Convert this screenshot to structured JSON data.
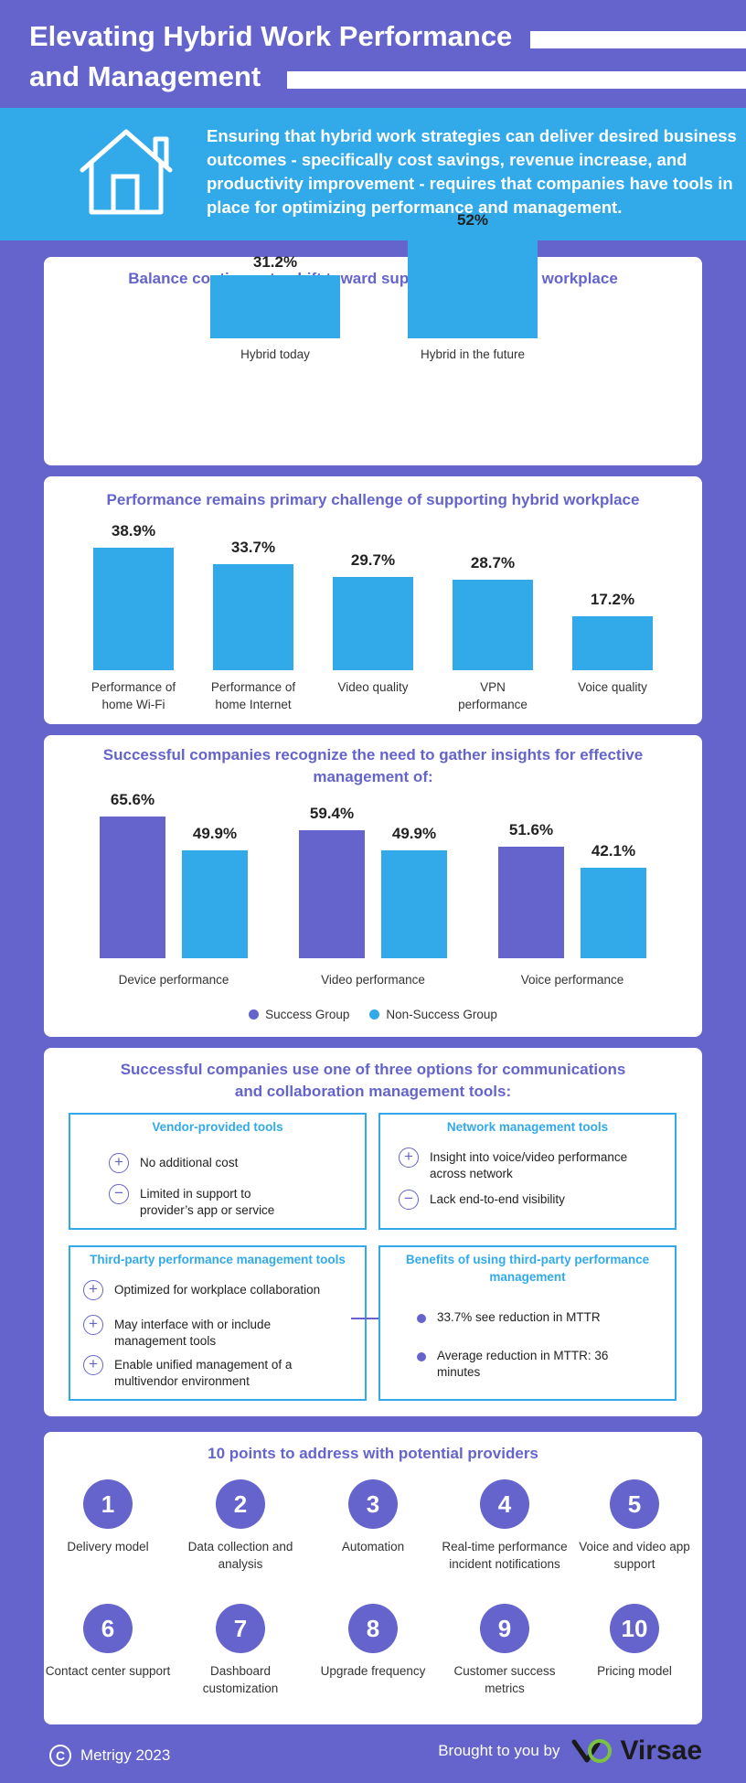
{
  "header": {
    "title_line1": "Elevating Hybrid Work Performance",
    "title_line2": "and Management"
  },
  "intro": {
    "text": "Ensuring that hybrid work strategies can deliver desired business outcomes - specifically cost savings, revenue increase, and productivity improvement - requires that companies have tools in place for optimizing performance and management.",
    "icon": "house-icon"
  },
  "colors": {
    "background": "#6464cc",
    "accent_blue": "#32aaea",
    "purple": "#6464cc",
    "white": "#ffffff"
  },
  "chart_data": [
    {
      "type": "bar",
      "title": "Balance continues to shift toward support of the hybrid workplace",
      "categories": [
        "Hybrid today",
        "Hybrid in the future"
      ],
      "values": [
        31.2,
        52
      ],
      "value_labels": [
        "31.2%",
        "52%"
      ],
      "color": "#32aaea"
    },
    {
      "type": "bar",
      "title": "Performance remains primary challenge of supporting hybrid workplace",
      "categories": [
        "Performance of home Wi-Fi",
        "Performance of home Internet",
        "Video quality",
        "VPN performance",
        "Voice quality"
      ],
      "category_lines": [
        [
          "Performance of",
          "home Wi-Fi"
        ],
        [
          "Performance of",
          "home Internet"
        ],
        [
          "Video quality"
        ],
        [
          "VPN",
          "performance"
        ],
        [
          "Voice quality"
        ]
      ],
      "values": [
        38.9,
        33.7,
        29.7,
        28.7,
        17.2
      ],
      "value_labels": [
        "38.9%",
        "33.7%",
        "29.7%",
        "28.7%",
        "17.2%"
      ],
      "color": "#32aaea"
    },
    {
      "type": "bar",
      "title": "Successful companies recognize the need to gather insights for effective management of:",
      "categories": [
        "Device performance",
        "Video performance",
        "Voice performance"
      ],
      "series": [
        {
          "name": "Success Group",
          "values": [
            65.6,
            59.4,
            51.6
          ],
          "value_labels": [
            "65.6%",
            "59.4%",
            "51.6%"
          ],
          "color": "#6464cc"
        },
        {
          "name": "Non-Success Group",
          "values": [
            49.9,
            49.9,
            42.1
          ],
          "value_labels": [
            "49.9%",
            "49.9%",
            "42.1%"
          ],
          "color": "#32aaea"
        }
      ],
      "legend": "bottom-center"
    }
  ],
  "options": {
    "title": "Successful companies use one of three options for communications and collaboration management tools:",
    "vendor": {
      "title": "Vendor-provided tools",
      "items": [
        {
          "symbol": "+",
          "text": "No additional cost"
        },
        {
          "symbol": "−",
          "text": "Limited in support to provider’s app or service"
        }
      ]
    },
    "network": {
      "title": "Network management tools",
      "items": [
        {
          "symbol": "+",
          "text": "Insight into voice/video performance across network"
        },
        {
          "symbol": "−",
          "text": "Lack end-to-end visibility"
        }
      ]
    },
    "thirdparty": {
      "title": "Third-party performance management tools",
      "items": [
        {
          "symbol": "+",
          "text": "Optimized for workplace collaboration"
        },
        {
          "symbol": "+",
          "text": "May interface with or include management tools"
        },
        {
          "symbol": "+",
          "text": "Enable unified management of a multivendor environment"
        }
      ]
    },
    "benefits": {
      "title": "Benefits of using third-party performance management",
      "items": [
        {
          "text": "33.7% see reduction in MTTR"
        },
        {
          "text": "Average reduction in MTTR: 36 minutes"
        }
      ]
    }
  },
  "points": {
    "title": "10 points to address with potential providers",
    "items": [
      {
        "num": "1",
        "label": "Delivery model"
      },
      {
        "num": "2",
        "label": "Data collection and analysis"
      },
      {
        "num": "3",
        "label": "Automation"
      },
      {
        "num": "4",
        "label": "Real-time performance incident notifications"
      },
      {
        "num": "5",
        "label": "Voice and video app support"
      },
      {
        "num": "6",
        "label": "Contact center support"
      },
      {
        "num": "7",
        "label": "Dashboard customization"
      },
      {
        "num": "8",
        "label": "Upgrade frequency"
      },
      {
        "num": "9",
        "label": "Customer success metrics"
      },
      {
        "num": "10",
        "label": "Pricing model"
      }
    ]
  },
  "footer": {
    "copyright_symbol": "C",
    "left": "Metrigy 2023",
    "brought": "Brought to you by",
    "brand": "Virsae"
  }
}
